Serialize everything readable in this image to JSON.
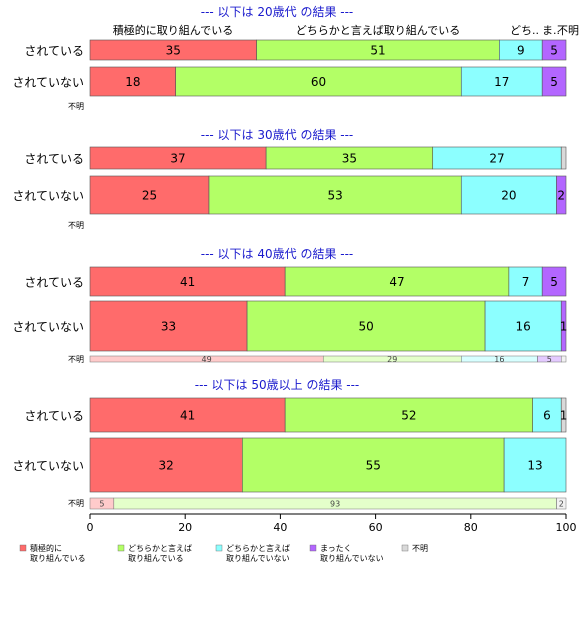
{
  "chart_data": {
    "type": "bar",
    "orientation": "horizontal",
    "stacked": true,
    "xlim": [
      0,
      100
    ],
    "x_ticks": [
      "0",
      "20",
      "40",
      "60",
      "80",
      "100"
    ],
    "legend_position": "bottom",
    "series": [
      {
        "name": "積極的に\n取り組んでいる",
        "color": "#ff6b6b"
      },
      {
        "name": "どちらかと言えば\n取り組んでいる",
        "color": "#b3ff66"
      },
      {
        "name": "どちらかと言えば\n取り組んでいない",
        "color": "#8cffff"
      },
      {
        "name": "まったく\n取り組んでいない",
        "color": "#b366ff"
      },
      {
        "name": "不明",
        "color": "#d9d9d9"
      }
    ],
    "top_category_labels": [
      "積極的に取り組んでいる",
      "どちらかと言えば取り組んでいる",
      "どち..",
      "ま..",
      "不明"
    ],
    "panels": [
      {
        "title": "--- 以下は 20歳代 の結果 ---",
        "rows": [
          {
            "label": "されている",
            "values": [
              35,
              51,
              9,
              5,
              0
            ],
            "value_labels": [
              "35",
              "51",
              "9",
              "5",
              ""
            ]
          },
          {
            "label": "されていない",
            "values": [
              18,
              60,
              17,
              5,
              0
            ],
            "value_labels": [
              "18",
              "60",
              "17",
              "5",
              ""
            ]
          }
        ],
        "unknown": {
          "label": "不明",
          "values": [],
          "value_labels": []
        }
      },
      {
        "title": "--- 以下は 30歳代 の結果 ---",
        "rows": [
          {
            "label": "されている",
            "values": [
              37,
              35,
              27,
              0,
              1
            ],
            "value_labels": [
              "37",
              "35",
              "27",
              "",
              ""
            ]
          },
          {
            "label": "されていない",
            "values": [
              25,
              53,
              20,
              2,
              0
            ],
            "value_labels": [
              "25",
              "53",
              "20",
              "2",
              ""
            ]
          }
        ],
        "unknown": {
          "label": "不明",
          "values": [],
          "value_labels": []
        }
      },
      {
        "title": "--- 以下は 40歳代 の結果 ---",
        "rows": [
          {
            "label": "されている",
            "values": [
              41,
              47,
              7,
              5,
              0
            ],
            "value_labels": [
              "41",
              "47",
              "7",
              "5",
              ""
            ]
          },
          {
            "label": "されていない",
            "values": [
              33,
              50,
              16,
              1,
              0
            ],
            "value_labels": [
              "33",
              "50",
              "16",
              "1",
              ""
            ]
          }
        ],
        "unknown": {
          "label": "不明",
          "values": [
            49,
            29,
            16,
            5,
            1
          ],
          "value_labels": [
            "49",
            "29",
            "16",
            "5",
            ""
          ]
        }
      },
      {
        "title": "--- 以下は 50歳以上 の結果 ---",
        "rows": [
          {
            "label": "されている",
            "values": [
              41,
              52,
              6,
              0,
              1
            ],
            "value_labels": [
              "41",
              "52",
              "6",
              "",
              "1"
            ]
          },
          {
            "label": "されていない",
            "values": [
              32,
              55,
              13,
              0,
              0
            ],
            "value_labels": [
              "32",
              "55",
              "13",
              "",
              ""
            ]
          }
        ],
        "unknown": {
          "label": "不明",
          "values": [
            5,
            93,
            0,
            0,
            2
          ],
          "value_labels": [
            "5",
            "93",
            "",
            "",
            "2"
          ]
        }
      }
    ]
  }
}
